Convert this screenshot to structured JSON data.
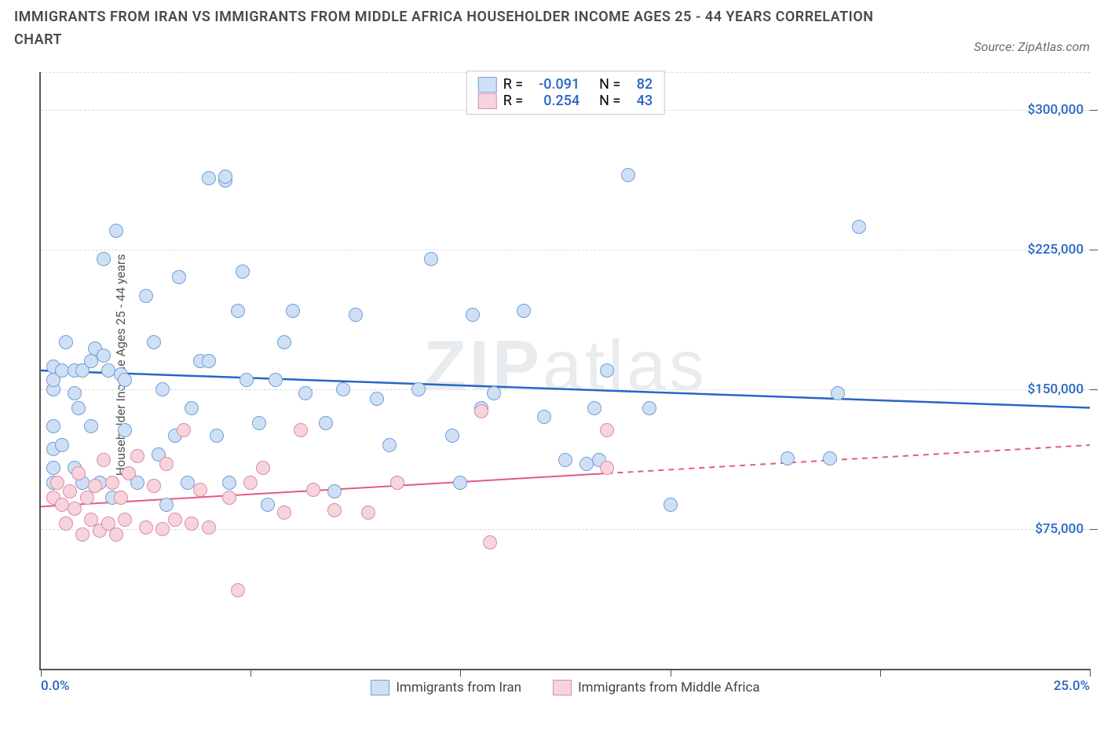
{
  "title": "IMMIGRANTS FROM IRAN VS IMMIGRANTS FROM MIDDLE AFRICA HOUSEHOLDER INCOME AGES 25 - 44 YEARS CORRELATION CHART",
  "source_label": "Source: ZipAtlas.com",
  "watermark_a": "ZIP",
  "watermark_b": "atlas",
  "chart": {
    "type": "scatter",
    "ylabel": "Householder Income Ages 25 - 44 years",
    "xlim": [
      0,
      25
    ],
    "ylim": [
      0,
      320000
    ],
    "x_ticks": [
      0,
      5,
      10,
      15,
      20,
      25
    ],
    "x_tick_labels": [
      "0.0%",
      "",
      "",
      "",
      "",
      "25.0%"
    ],
    "y_gridlines": [
      75000,
      150000,
      225000,
      300000
    ],
    "y_tick_labels": [
      "$75,000",
      "$150,000",
      "$225,000",
      "$300,000"
    ],
    "grid_color": "#d9d9d9",
    "axis_color": "#555555",
    "tick_label_color": "#2866c4",
    "marker_radius": 8,
    "marker_border": 1.3,
    "series": [
      {
        "key": "iran",
        "label": "Immigrants from Iran",
        "R": "-0.091",
        "N": "82",
        "fill": "#cfe0f5",
        "stroke": "#6f9fd8",
        "trend": {
          "y0": 160000,
          "y1": 140000,
          "color": "#2866c4",
          "width": 2.5,
          "dash": null,
          "solid_x_end": 25
        },
        "points": [
          [
            0.3,
            118000
          ],
          [
            0.3,
            150000
          ],
          [
            0.3,
            100000
          ],
          [
            0.3,
            108000
          ],
          [
            0.3,
            162000
          ],
          [
            0.3,
            155000
          ],
          [
            0.3,
            130000
          ],
          [
            0.5,
            120000
          ],
          [
            0.5,
            160000
          ],
          [
            0.6,
            175000
          ],
          [
            0.8,
            160000
          ],
          [
            0.8,
            148000
          ],
          [
            0.8,
            108000
          ],
          [
            0.9,
            140000
          ],
          [
            1.0,
            160000
          ],
          [
            1.0,
            100000
          ],
          [
            1.2,
            165000
          ],
          [
            1.2,
            130000
          ],
          [
            1.3,
            172000
          ],
          [
            1.4,
            100000
          ],
          [
            1.5,
            220000
          ],
          [
            1.5,
            168000
          ],
          [
            1.6,
            160000
          ],
          [
            1.7,
            92000
          ],
          [
            1.8,
            235000
          ],
          [
            1.9,
            158000
          ],
          [
            2.0,
            155000
          ],
          [
            2.0,
            128000
          ],
          [
            2.3,
            100000
          ],
          [
            2.5,
            200000
          ],
          [
            2.7,
            175000
          ],
          [
            2.8,
            115000
          ],
          [
            2.9,
            150000
          ],
          [
            3.0,
            88000
          ],
          [
            3.2,
            125000
          ],
          [
            3.3,
            210000
          ],
          [
            3.5,
            100000
          ],
          [
            3.6,
            140000
          ],
          [
            3.8,
            165000
          ],
          [
            4.0,
            263000
          ],
          [
            4.0,
            165000
          ],
          [
            4.2,
            125000
          ],
          [
            4.4,
            262000
          ],
          [
            4.4,
            264000
          ],
          [
            4.5,
            100000
          ],
          [
            4.7,
            192000
          ],
          [
            4.8,
            213000
          ],
          [
            4.9,
            155000
          ],
          [
            5.2,
            132000
          ],
          [
            5.4,
            88000
          ],
          [
            5.6,
            155000
          ],
          [
            5.8,
            175000
          ],
          [
            6.0,
            192000
          ],
          [
            6.3,
            148000
          ],
          [
            6.8,
            132000
          ],
          [
            7.0,
            95000
          ],
          [
            7.2,
            150000
          ],
          [
            7.5,
            190000
          ],
          [
            8.0,
            145000
          ],
          [
            8.3,
            120000
          ],
          [
            8.5,
            100000
          ],
          [
            9.0,
            150000
          ],
          [
            9.3,
            220000
          ],
          [
            9.8,
            125000
          ],
          [
            10.0,
            100000
          ],
          [
            10.3,
            190000
          ],
          [
            10.5,
            140000
          ],
          [
            10.8,
            148000
          ],
          [
            11.5,
            192000
          ],
          [
            12.0,
            135000
          ],
          [
            12.5,
            112000
          ],
          [
            13.0,
            110000
          ],
          [
            13.2,
            140000
          ],
          [
            13.3,
            112000
          ],
          [
            13.5,
            160000
          ],
          [
            14.0,
            265000
          ],
          [
            14.5,
            140000
          ],
          [
            15.0,
            88000
          ],
          [
            17.8,
            113000
          ],
          [
            18.8,
            113000
          ],
          [
            19.0,
            148000
          ],
          [
            19.5,
            237000
          ]
        ]
      },
      {
        "key": "mafrica",
        "label": "Immigrants from Middle Africa",
        "R": "0.254",
        "N": "43",
        "fill": "#f6d4dd",
        "stroke": "#df8aa3",
        "trend": {
          "y0": 87000,
          "y1": 120000,
          "color": "#e35a86",
          "width": 2,
          "dash": "7 6",
          "solid_x_end": 13.5
        },
        "points": [
          [
            0.3,
            92000
          ],
          [
            0.4,
            100000
          ],
          [
            0.5,
            88000
          ],
          [
            0.6,
            78000
          ],
          [
            0.7,
            95000
          ],
          [
            0.8,
            86000
          ],
          [
            0.9,
            105000
          ],
          [
            1.0,
            72000
          ],
          [
            1.1,
            92000
          ],
          [
            1.2,
            80000
          ],
          [
            1.3,
            98000
          ],
          [
            1.4,
            74000
          ],
          [
            1.5,
            112000
          ],
          [
            1.6,
            78000
          ],
          [
            1.7,
            100000
          ],
          [
            1.8,
            72000
          ],
          [
            1.9,
            92000
          ],
          [
            2.0,
            80000
          ],
          [
            2.1,
            105000
          ],
          [
            2.3,
            114000
          ],
          [
            2.5,
            76000
          ],
          [
            2.7,
            98000
          ],
          [
            2.9,
            75000
          ],
          [
            3.0,
            110000
          ],
          [
            3.2,
            80000
          ],
          [
            3.4,
            128000
          ],
          [
            3.6,
            78000
          ],
          [
            3.8,
            96000
          ],
          [
            4.0,
            76000
          ],
          [
            4.5,
            92000
          ],
          [
            4.7,
            42000
          ],
          [
            5.0,
            100000
          ],
          [
            5.3,
            108000
          ],
          [
            5.8,
            84000
          ],
          [
            6.2,
            128000
          ],
          [
            6.5,
            96000
          ],
          [
            7.0,
            85000
          ],
          [
            7.8,
            84000
          ],
          [
            8.5,
            100000
          ],
          [
            10.5,
            138000
          ],
          [
            10.7,
            68000
          ],
          [
            13.5,
            128000
          ],
          [
            13.5,
            108000
          ]
        ]
      }
    ]
  },
  "legend_top": {
    "r_label": "R =",
    "n_label": "N ="
  }
}
